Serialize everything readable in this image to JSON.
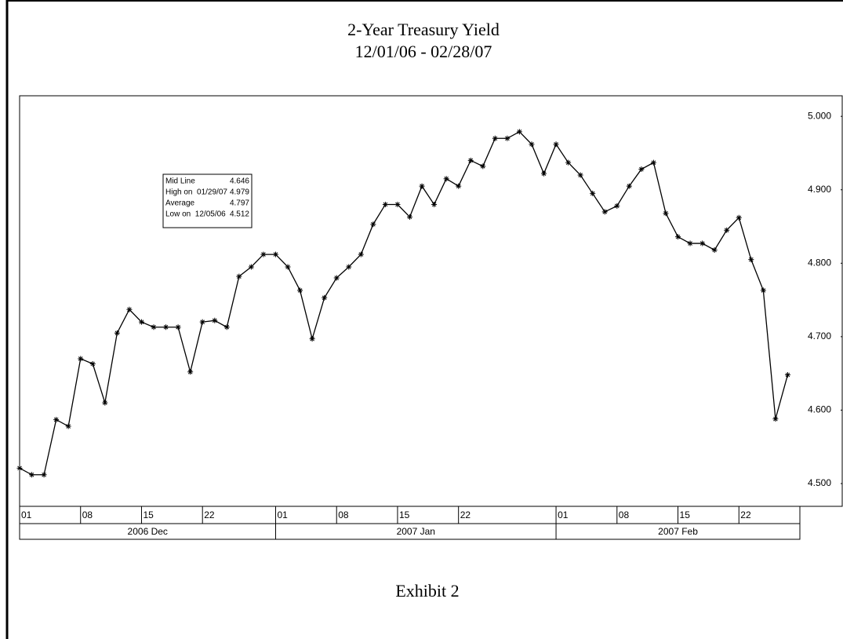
{
  "chart_data": {
    "type": "line",
    "title": "2-Year Treasury Yield",
    "subtitle": "12/01/06 - 02/28/07",
    "caption": "Exhibit 2",
    "categories": [
      "01",
      null,
      null,
      null,
      null,
      "08",
      null,
      null,
      null,
      null,
      "15",
      null,
      null,
      null,
      null,
      "22",
      null,
      null,
      null,
      null,
      null,
      "01",
      null,
      null,
      null,
      null,
      "08",
      null,
      null,
      null,
      null,
      "15",
      null,
      null,
      null,
      null,
      "22",
      null,
      null,
      null,
      null,
      null,
      null,
      null,
      "01",
      null,
      null,
      null,
      null,
      "08",
      null,
      null,
      null,
      null,
      "15",
      null,
      null,
      null,
      null,
      "22",
      null,
      null,
      null,
      null
    ],
    "months": [
      "2006 Dec",
      "2007 Jan",
      "2007 Feb"
    ],
    "series": [
      {
        "name": "2-Year Treasury Yield",
        "color": "#000000",
        "values": [
          4.521,
          4.512,
          4.512,
          4.587,
          4.578,
          4.67,
          4.663,
          4.61,
          4.705,
          4.737,
          4.72,
          4.713,
          4.713,
          4.713,
          4.652,
          4.72,
          4.722,
          4.713,
          4.782,
          4.795,
          4.812,
          4.812,
          4.795,
          4.763,
          4.697,
          4.753,
          4.78,
          4.795,
          4.812,
          4.853,
          4.88,
          4.88,
          4.863,
          4.905,
          4.88,
          4.915,
          4.905,
          4.94,
          4.932,
          4.97,
          4.97,
          4.979,
          4.962,
          4.922,
          4.962,
          4.937,
          4.92,
          4.895,
          4.87,
          4.878,
          4.905,
          4.928,
          4.937,
          4.868,
          4.836,
          4.827,
          4.827,
          4.818,
          4.845,
          4.862,
          4.805,
          4.763,
          4.588,
          4.648
        ]
      }
    ],
    "stats": [
      {
        "label": "Mid Line",
        "value": 4.646
      },
      {
        "label": "High on  01/29/07",
        "value": 4.979
      },
      {
        "label": "Average",
        "value": 4.797
      },
      {
        "label": "Low on  12/05/06",
        "value": 4.512
      }
    ],
    "ylim": [
      4.469,
      5.028
    ],
    "yticks": [
      {
        "value": 4.5,
        "label": "4.500"
      },
      {
        "value": 4.6,
        "label": "4.600"
      },
      {
        "value": 4.7,
        "label": "4.700"
      },
      {
        "value": 4.8,
        "label": "4.800"
      },
      {
        "value": 4.9,
        "label": "4.900"
      },
      {
        "value": 5.0,
        "label": "5.000"
      }
    ],
    "grid": false
  }
}
